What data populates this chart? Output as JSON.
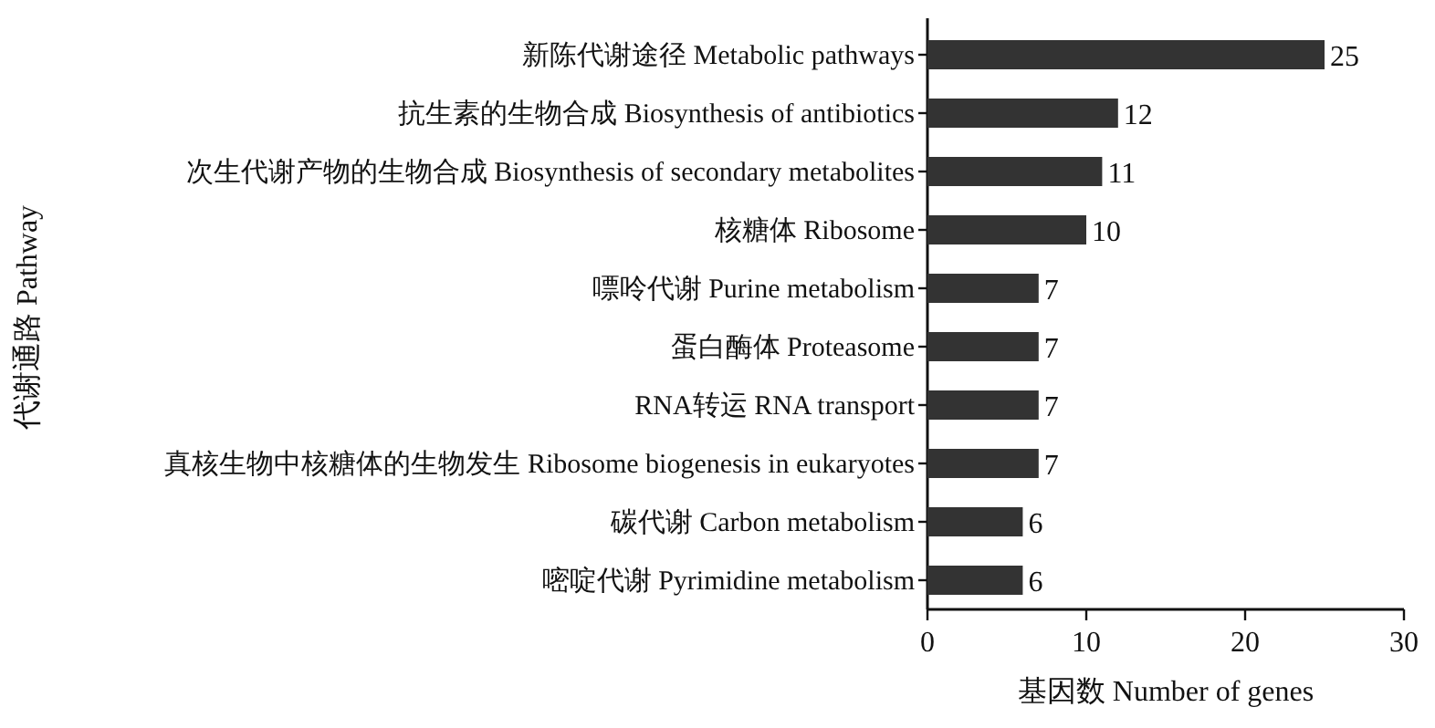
{
  "chart_data": {
    "type": "bar",
    "orientation": "horizontal",
    "xlabel": "基因数  Number of genes",
    "ylabel": "代谢通路  Pathway",
    "categories": [
      "新陈代谢途径 Metabolic pathways",
      "抗生素的生物合成 Biosynthesis of antibiotics",
      "次生代谢产物的生物合成 Biosynthesis of secondary metabolites",
      "核糖体 Ribosome",
      "嘌呤代谢 Purine metabolism",
      "蛋白酶体 Proteasome",
      "RNA转运 RNA transport",
      "真核生物中核糖体的生物发生 Ribosome biogenesis in eukaryotes",
      "碳代谢 Carbon metabolism",
      "嘧啶代谢 Pyrimidine metabolism"
    ],
    "values": [
      25,
      12,
      11,
      10,
      7,
      7,
      7,
      7,
      6,
      6
    ],
    "color": "#333333",
    "xlim": [
      0,
      30
    ],
    "xticks": [
      0,
      10,
      20,
      30
    ],
    "data_labels": true
  }
}
